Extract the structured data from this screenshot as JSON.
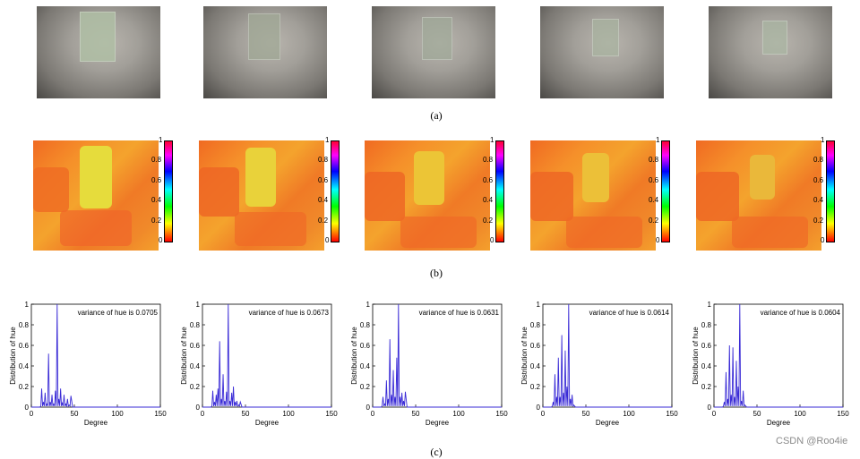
{
  "captions": {
    "a": "(a)",
    "b": "(b)",
    "c": "(c)"
  },
  "colorbar": {
    "ticks": [
      "1",
      "0.8",
      "0.6",
      "0.4",
      "0.2",
      "0"
    ],
    "colors": [
      "#ff0000",
      "#ffff00",
      "#00ff00",
      "#00ffff",
      "#0000ff",
      "#ff00ff"
    ]
  },
  "watermark": "CSDN @Roo4ie",
  "plot_common": {
    "xlabel": "Degree",
    "ylabel": "Distribution of hue",
    "xticks": [
      "0",
      "50",
      "100",
      "150"
    ],
    "yticks": [
      "0",
      "0.2",
      "0.4",
      "0.6",
      "0.8",
      "1"
    ],
    "line_color": "#3a2bd6"
  },
  "chart_data": [
    {
      "type": "line",
      "annotation": "variance of hue is 0.0705",
      "xlim": [
        0,
        150
      ],
      "ylim": [
        0,
        1
      ],
      "x": [
        12,
        14,
        16,
        18,
        20,
        22,
        24,
        26,
        28,
        30,
        32,
        34,
        36,
        38,
        40,
        42,
        44,
        46
      ],
      "y": [
        0.18,
        0.05,
        0.14,
        0.03,
        0.52,
        0.05,
        0.12,
        0.03,
        0.16,
        1.0,
        0.08,
        0.18,
        0.04,
        0.12,
        0.03,
        0.08,
        0.02,
        0.11
      ]
    },
    {
      "type": "line",
      "annotation": "variance of hue is 0.0673",
      "xlim": [
        0,
        150
      ],
      "ylim": [
        0,
        1
      ],
      "x": [
        12,
        14,
        16,
        18,
        20,
        22,
        24,
        26,
        28,
        30,
        32,
        34,
        36,
        38,
        40,
        42,
        44
      ],
      "y": [
        0.16,
        0.05,
        0.12,
        0.18,
        0.64,
        0.08,
        0.32,
        0.06,
        0.15,
        1.0,
        0.06,
        0.14,
        0.2,
        0.05,
        0.06,
        0.02,
        0.05
      ]
    },
    {
      "type": "line",
      "annotation": "variance of hue is 0.0631",
      "xlim": [
        0,
        150
      ],
      "ylim": [
        0,
        1
      ],
      "x": [
        12,
        14,
        16,
        18,
        20,
        22,
        24,
        26,
        28,
        30,
        32,
        34,
        36,
        38
      ],
      "y": [
        0.1,
        0.03,
        0.26,
        0.08,
        0.66,
        0.12,
        0.36,
        0.1,
        0.48,
        1.0,
        0.1,
        0.14,
        0.06,
        0.15
      ]
    },
    {
      "type": "line",
      "annotation": "variance of hue is 0.0614",
      "xlim": [
        0,
        150
      ],
      "ylim": [
        0,
        1
      ],
      "x": [
        12,
        14,
        16,
        18,
        20,
        22,
        24,
        26,
        28,
        30,
        32,
        34,
        36
      ],
      "y": [
        0.05,
        0.32,
        0.1,
        0.48,
        0.1,
        0.7,
        0.14,
        0.55,
        0.2,
        1.0,
        0.08,
        0.12,
        0.02
      ]
    },
    {
      "type": "line",
      "annotation": "variance of hue is 0.0604",
      "xlim": [
        0,
        150
      ],
      "ylim": [
        0,
        1
      ],
      "x": [
        12,
        14,
        16,
        18,
        20,
        22,
        24,
        26,
        28,
        30,
        32,
        34,
        36
      ],
      "y": [
        0.05,
        0.34,
        0.08,
        0.6,
        0.12,
        0.58,
        0.1,
        0.45,
        0.2,
        1.0,
        0.06,
        0.16,
        0.02
      ]
    }
  ]
}
